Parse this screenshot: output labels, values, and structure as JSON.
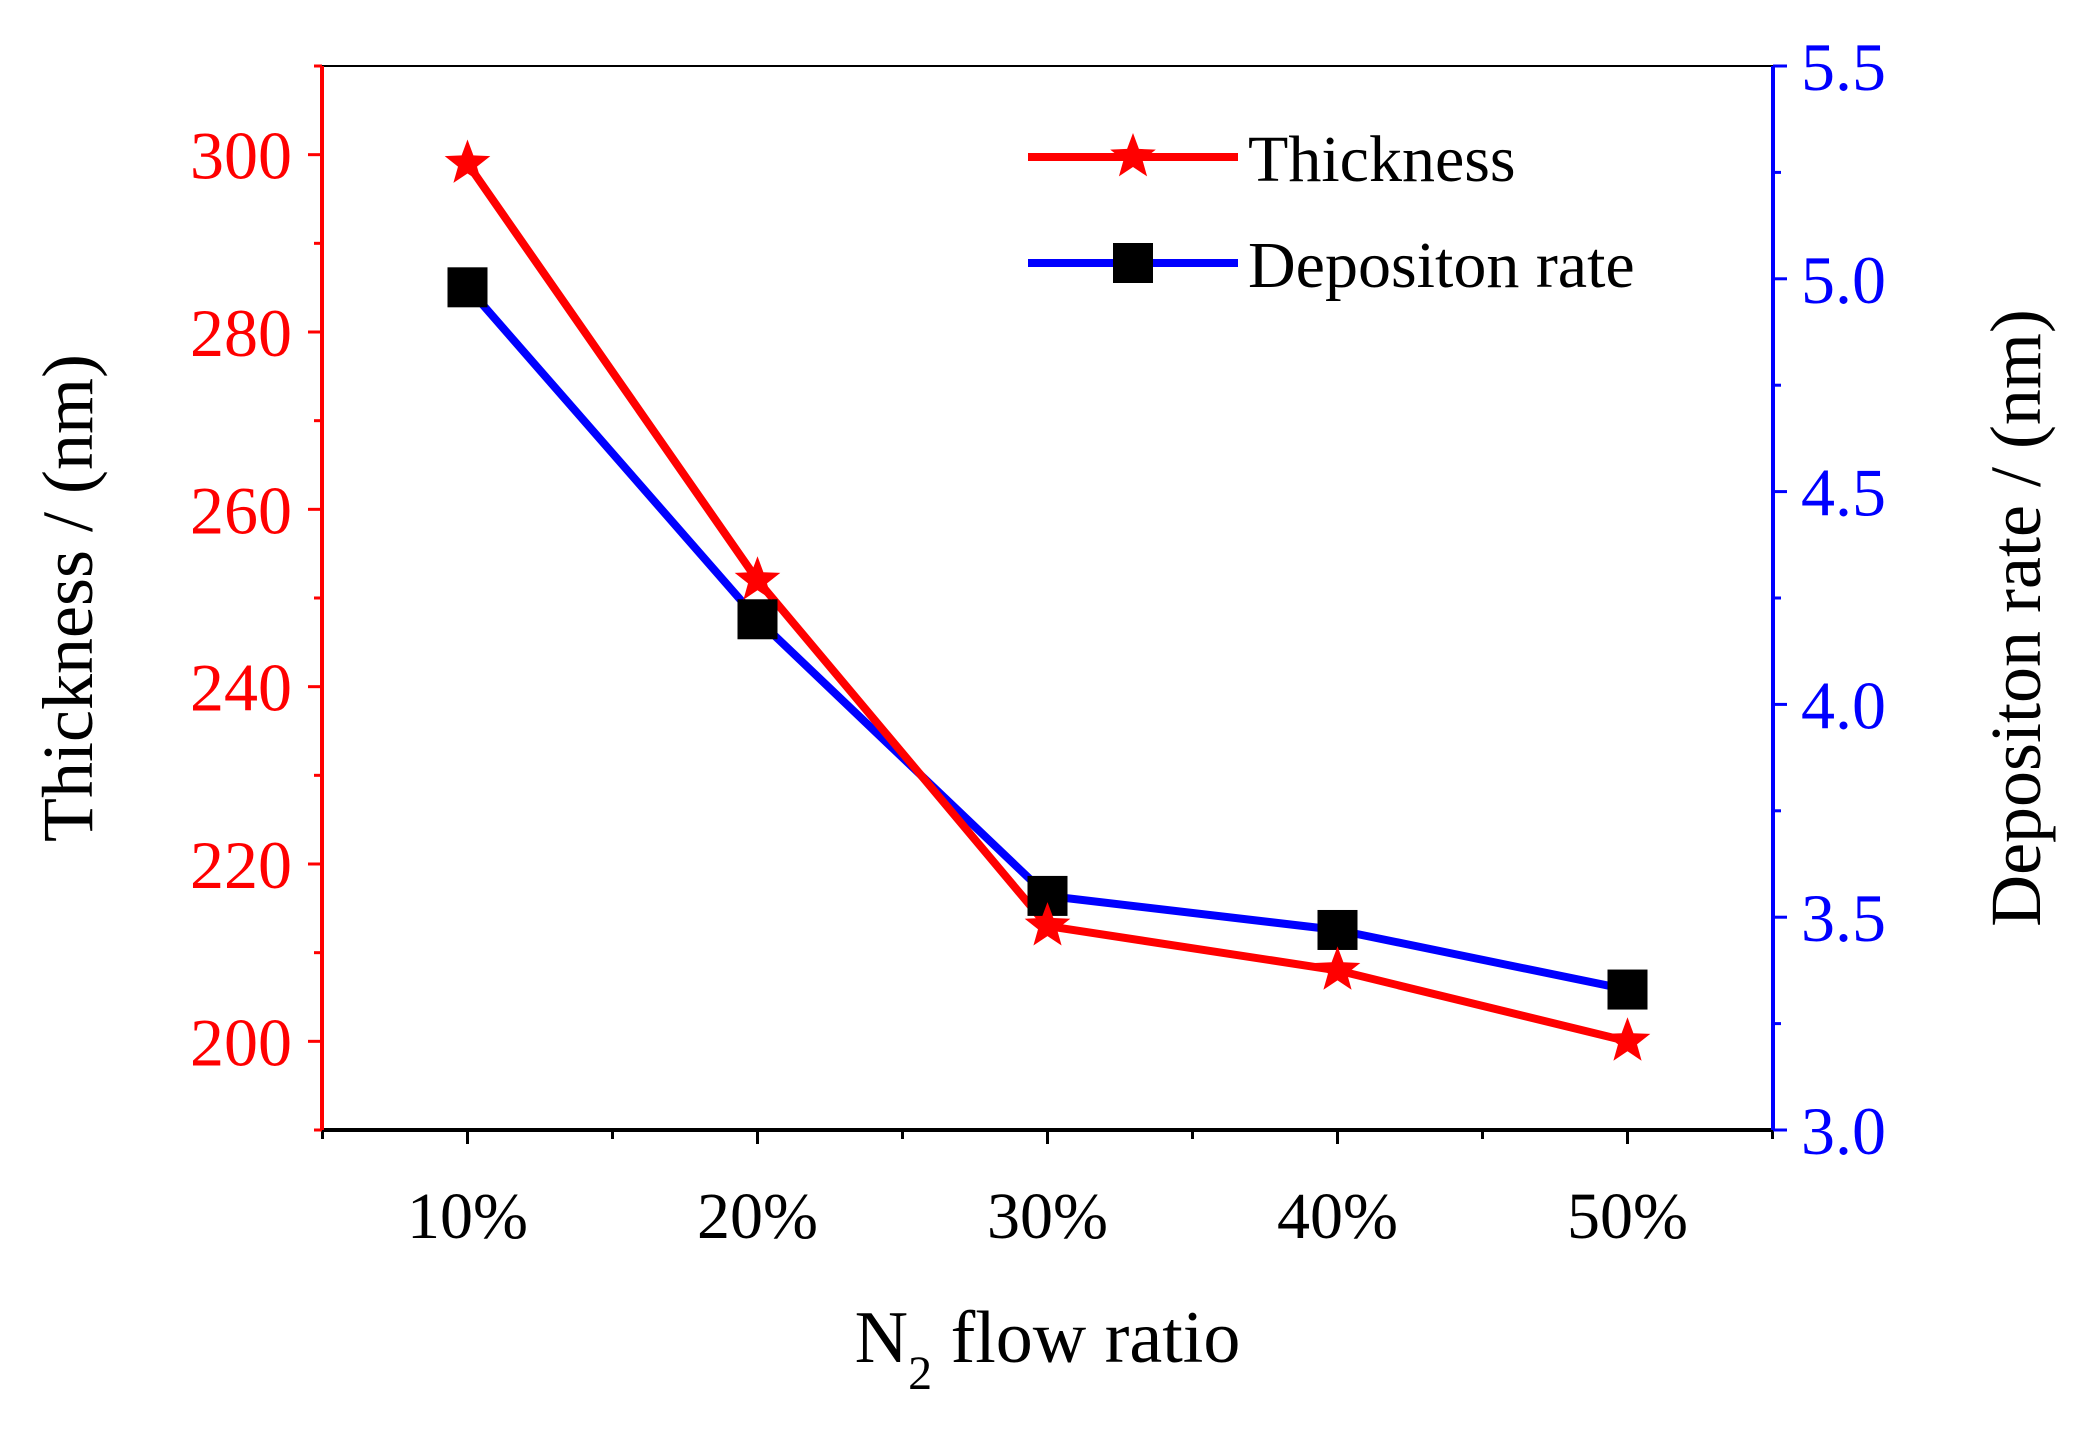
{
  "chart_data": {
    "type": "line",
    "title": "",
    "xlabel": {
      "main": "N",
      "sub": "2",
      "rest": " flow ratio"
    },
    "categories": [
      "10%",
      "20%",
      "30%",
      "40%",
      "50%"
    ],
    "left_axis": {
      "label": "Thickness / (nm)",
      "color": "#ff0000",
      "ylim": [
        190,
        310
      ],
      "ticks": [
        200,
        220,
        240,
        260,
        280,
        300
      ],
      "tick_labels": [
        "200",
        "220",
        "240",
        "260",
        "280",
        "300"
      ]
    },
    "right_axis": {
      "label": "Depositon rate / (nm)",
      "color": "#0000ff",
      "ylim": [
        3.0,
        5.5
      ],
      "ticks": [
        3.0,
        3.5,
        4.0,
        4.5,
        5.0,
        5.5
      ],
      "tick_labels": [
        "3.0",
        "3.5",
        "4.0",
        "4.5",
        "5.0",
        "5.5"
      ]
    },
    "series": [
      {
        "name": "Thickness",
        "axis": "left",
        "line_color": "#ff0000",
        "marker": "star",
        "marker_color": "#ff0000",
        "values": [
          299,
          252,
          213,
          208,
          200
        ]
      },
      {
        "name": "Depositon rate",
        "axis": "right",
        "line_color": "#0000ff",
        "marker": "square",
        "marker_color": "#000000",
        "values": [
          4.98,
          4.2,
          3.55,
          3.47,
          3.33
        ]
      }
    ],
    "legend": {
      "placement": "top-right",
      "entries": [
        "Thickness",
        "Depositon rate"
      ]
    },
    "grid": false
  }
}
